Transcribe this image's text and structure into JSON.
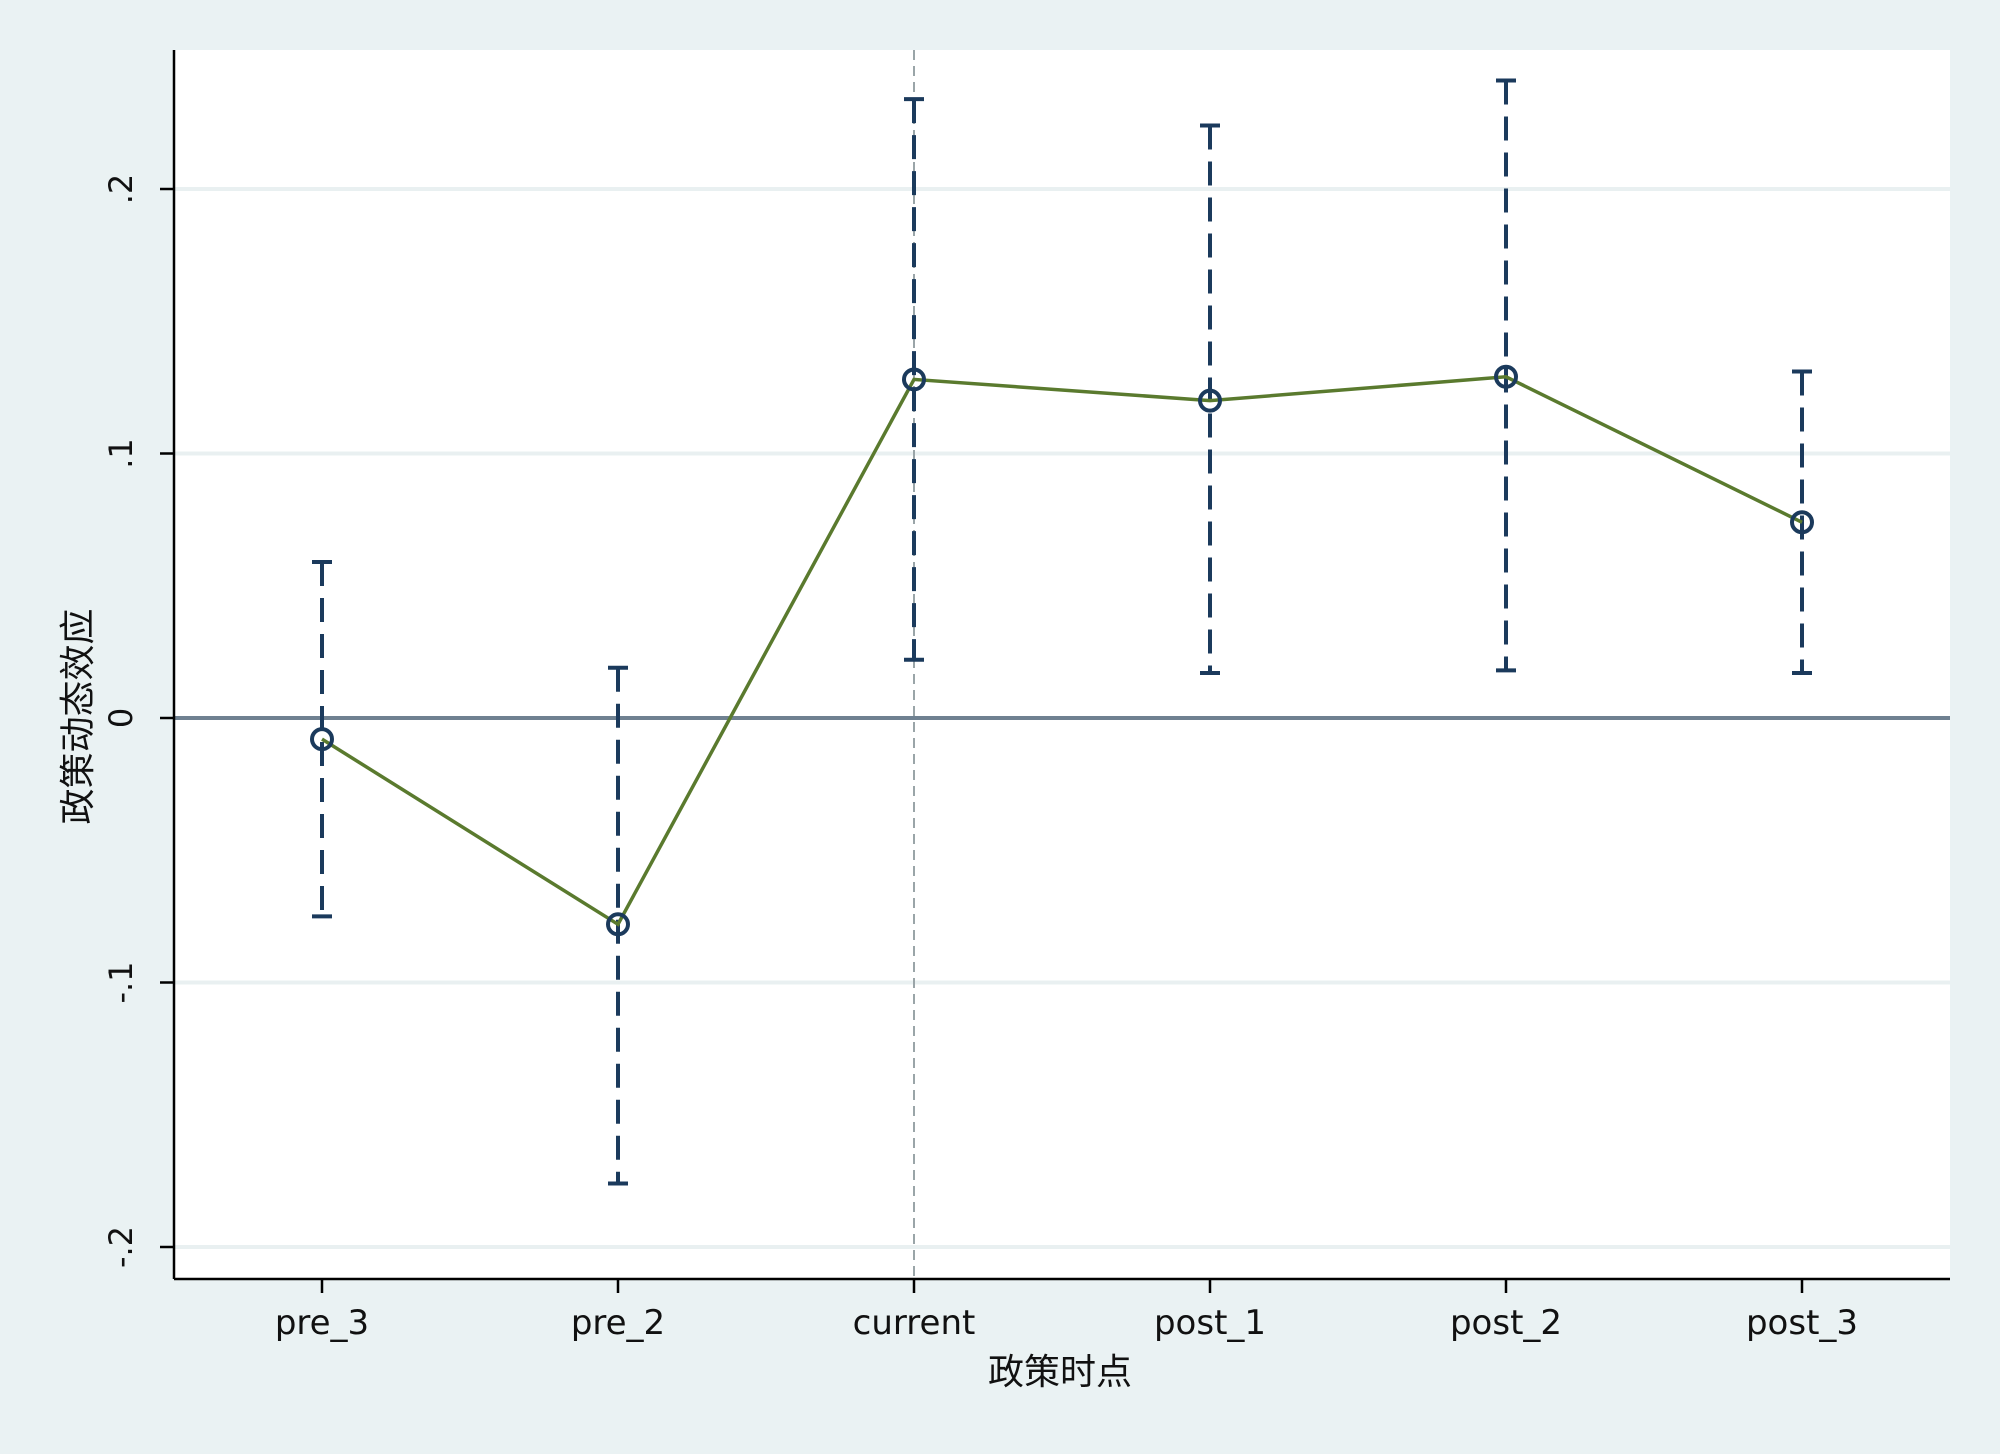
{
  "chart_data": {
    "type": "scatter",
    "title": "",
    "xlabel": "政策时点",
    "ylabel": "政策动态效应",
    "categories": [
      "pre_3",
      "pre_2",
      "current",
      "post_1",
      "post_2",
      "post_3"
    ],
    "series": [
      {
        "estimates": [
          -0.008,
          -0.078,
          0.128,
          0.12,
          0.129,
          0.074
        ],
        "ci_lower": [
          -0.075,
          -0.176,
          0.022,
          0.017,
          0.018,
          0.017
        ],
        "ci_upper": [
          0.059,
          0.019,
          0.234,
          0.224,
          0.241,
          0.131
        ]
      }
    ],
    "yticks": [
      -0.2,
      -0.1,
      0,
      0.1,
      0.2
    ],
    "ytick_labels": [
      "-.2",
      "-.1",
      "0",
      ".1",
      ".2"
    ],
    "ylim": [
      -0.212,
      0.253
    ],
    "reference_line_y": 0,
    "reference_line_x": "current",
    "grid": true,
    "legend": "none",
    "colors": {
      "background": "#eaf2f3",
      "plot_area": "#ffffff",
      "grid": "#e9f0f1",
      "estimate_line": "#5a7a2e",
      "marker": "#1b3a5c",
      "ci": "#1b3a5c",
      "zero_line": "#6f8191",
      "vertical_line": "#9aa5a8"
    }
  }
}
